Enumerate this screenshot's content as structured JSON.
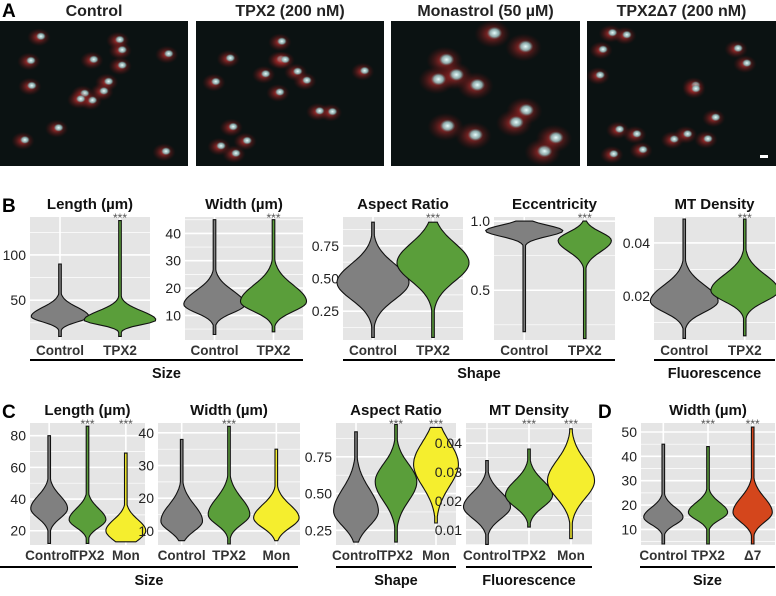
{
  "panel_a": {
    "label": "A",
    "images": [
      {
        "title": "Control"
      },
      {
        "title": "TPX2 (200 nM)"
      },
      {
        "title": "Monastrol (50 µM)"
      },
      {
        "title": "TPX2Δ7 (200 nM)"
      }
    ]
  },
  "colors": {
    "Control": "#808080",
    "TPX2": "#5a9e3a",
    "Mon": "#f5ee2e",
    "Δ7": "#d4461c",
    "panel_bg": "#e5e5e5",
    "grid": "#ffffff"
  },
  "chart_data": [
    {
      "id": "B1",
      "panel_label": "B",
      "type": "violin",
      "title": "Length (µm)",
      "ylim": [
        6,
        142
      ],
      "yticks": [
        50,
        100
      ],
      "group": "Size",
      "significance": [
        "",
        "***"
      ],
      "violins": [
        {
          "category": "Control",
          "min": 10,
          "max": 90,
          "mode": 32,
          "spread_below": 6,
          "spread_above": 10,
          "relative_width": 0.6
        },
        {
          "category": "TPX2",
          "min": 10,
          "max": 138,
          "mode": 28,
          "spread_below": 5,
          "spread_above": 10,
          "relative_width": 0.75
        }
      ]
    },
    {
      "id": "B2",
      "type": "violin",
      "title": "Width (µm)",
      "ylim": [
        1,
        46
      ],
      "yticks": [
        10,
        20,
        30,
        40
      ],
      "group": "Size",
      "significance": [
        "",
        "***"
      ],
      "violins": [
        {
          "category": "Control",
          "min": 3,
          "max": 45,
          "mode": 14,
          "spread_below": 3,
          "spread_above": 5,
          "relative_width": 0.65
        },
        {
          "category": "TPX2",
          "min": 4,
          "max": 45,
          "mode": 15,
          "spread_below": 3.5,
          "spread_above": 6,
          "relative_width": 0.7
        }
      ]
    },
    {
      "id": "B3",
      "type": "violin",
      "title": "Aspect Ratio",
      "ylim": [
        0.03,
        0.97
      ],
      "yticks": [
        0.25,
        0.5,
        0.75
      ],
      "tick_labels": [
        "0.25",
        "0.50",
        "0.75"
      ],
      "group": "Shape",
      "significance": [
        "",
        "***"
      ],
      "violins": [
        {
          "category": "Control",
          "min": 0.05,
          "max": 0.93,
          "mode": 0.47,
          "spread_below": 0.13,
          "spread_above": 0.14,
          "relative_width": 0.75
        },
        {
          "category": "TPX2",
          "min": 0.05,
          "max": 0.93,
          "mode": 0.62,
          "spread_below": 0.14,
          "spread_above": 0.15,
          "relative_width": 0.75
        }
      ]
    },
    {
      "id": "B4",
      "type": "violin",
      "title": "Eccentricity",
      "ylim": [
        0.14,
        1.03
      ],
      "yticks": [
        0.5,
        1.0
      ],
      "tick_labels": [
        "0.5",
        "1.0"
      ],
      "group": "Shape",
      "significance": [
        "",
        "***"
      ],
      "violins": [
        {
          "category": "Control",
          "min": 0.2,
          "max": 1.0,
          "mode": 0.93,
          "spread_below": 0.04,
          "spread_above": 0.04,
          "relative_width": 0.8
        },
        {
          "category": "TPX2",
          "min": 0.15,
          "max": 1.0,
          "mode": 0.86,
          "spread_below": 0.08,
          "spread_above": 0.06,
          "relative_width": 0.55
        }
      ]
    },
    {
      "id": "B5",
      "type": "violin",
      "title": "MT Density",
      "ylim": [
        0.0034,
        0.0498
      ],
      "yticks": [
        0.02,
        0.04
      ],
      "tick_labels": [
        "0.02",
        "0.04"
      ],
      "group": "Fluorescence",
      "significance": [
        "",
        "***"
      ],
      "violins": [
        {
          "category": "Control",
          "min": 0.004,
          "max": 0.049,
          "mode": 0.018,
          "spread_below": 0.004,
          "spread_above": 0.006,
          "relative_width": 0.7
        },
        {
          "category": "TPX2",
          "min": 0.005,
          "max": 0.049,
          "mode": 0.022,
          "spread_below": 0.004,
          "spread_above": 0.006,
          "relative_width": 0.7
        }
      ]
    },
    {
      "id": "C1",
      "panel_label": "C",
      "type": "violin",
      "title": "Length (µm)",
      "ylim": [
        11,
        88
      ],
      "yticks": [
        20,
        40,
        60,
        80
      ],
      "group": "Size",
      "significance": [
        "",
        "***",
        "***"
      ],
      "violins": [
        {
          "category": "Control",
          "min": 12,
          "max": 80,
          "mode": 34,
          "spread_below": 6,
          "spread_above": 8,
          "relative_width": 0.6
        },
        {
          "category": "TPX2",
          "min": 12,
          "max": 86,
          "mode": 27,
          "spread_below": 5,
          "spread_above": 7,
          "relative_width": 0.6
        },
        {
          "category": "Mon",
          "min": 13,
          "max": 69,
          "mode": 20,
          "spread_below": 6,
          "spread_above": 7,
          "relative_width": 0.65
        }
      ]
    },
    {
      "id": "C2",
      "type": "violin",
      "title": "Width (µm)",
      "ylim": [
        5.7,
        43
      ],
      "yticks": [
        10,
        20,
        30,
        40
      ],
      "group": "Size",
      "significance": [
        "",
        "***",
        ""
      ],
      "violins": [
        {
          "category": "Control",
          "min": 7,
          "max": 38,
          "mode": 13,
          "spread_below": 3,
          "spread_above": 5,
          "relative_width": 0.55
        },
        {
          "category": "TPX2",
          "min": 6,
          "max": 42,
          "mode": 15,
          "spread_below": 3,
          "spread_above": 5,
          "relative_width": 0.55
        },
        {
          "category": "Mon",
          "min": 7,
          "max": 35,
          "mode": 14,
          "spread_below": 3,
          "spread_above": 4,
          "relative_width": 0.6
        }
      ]
    },
    {
      "id": "C3",
      "type": "violin",
      "title": "Aspect Ratio",
      "ylim": [
        0.15,
        0.98
      ],
      "yticks": [
        0.25,
        0.5,
        0.75
      ],
      "tick_labels": [
        "0.25",
        "0.50",
        "0.75"
      ],
      "group": "Shape",
      "significance": [
        "",
        "***",
        "***"
      ],
      "violins": [
        {
          "category": "Control",
          "min": 0.17,
          "max": 0.92,
          "mode": 0.38,
          "spread_below": 0.1,
          "spread_above": 0.15,
          "relative_width": 0.7
        },
        {
          "category": "TPX2",
          "min": 0.17,
          "max": 0.97,
          "mode": 0.58,
          "spread_below": 0.13,
          "spread_above": 0.12,
          "relative_width": 0.65
        },
        {
          "category": "Mon",
          "min": 0.3,
          "max": 0.95,
          "mode": 0.7,
          "spread_below": 0.15,
          "spread_above": 0.15,
          "relative_width": 0.7
        }
      ]
    },
    {
      "id": "C4",
      "type": "violin",
      "title": "MT Density",
      "ylim": [
        0.0048,
        0.047
      ],
      "yticks": [
        0.01,
        0.02,
        0.03,
        0.04
      ],
      "tick_labels": [
        "0.01",
        "0.02",
        "0.03",
        "0.04"
      ],
      "group": "Fluorescence",
      "significance": [
        "",
        "***",
        "***"
      ],
      "violins": [
        {
          "category": "Control",
          "min": 0.005,
          "max": 0.034,
          "mode": 0.018,
          "spread_below": 0.004,
          "spread_above": 0.005,
          "relative_width": 0.7
        },
        {
          "category": "TPX2",
          "min": 0.011,
          "max": 0.038,
          "mode": 0.022,
          "spread_below": 0.004,
          "spread_above": 0.005,
          "relative_width": 0.7
        },
        {
          "category": "Mon",
          "min": 0.007,
          "max": 0.045,
          "mode": 0.027,
          "spread_below": 0.006,
          "spread_above": 0.007,
          "relative_width": 0.7
        }
      ]
    },
    {
      "id": "D1",
      "panel_label": "D",
      "type": "violin",
      "title": "Width (µm)",
      "ylim": [
        3.6,
        53.7
      ],
      "yticks": [
        10,
        20,
        30,
        40,
        50
      ],
      "group": "Size",
      "significance": [
        "",
        "***",
        "***"
      ],
      "violins": [
        {
          "category": "Control",
          "min": 4,
          "max": 45,
          "mode": 15,
          "spread_below": 3,
          "spread_above": 4,
          "relative_width": 0.55
        },
        {
          "category": "TPX2",
          "min": 4,
          "max": 44,
          "mode": 17,
          "spread_below": 3,
          "spread_above": 4,
          "relative_width": 0.55
        },
        {
          "category": "Δ7",
          "min": 4,
          "max": 52,
          "mode": 17,
          "spread_below": 4,
          "spread_above": 6,
          "relative_width": 0.55
        }
      ]
    }
  ],
  "group_labels": {
    "B": [
      "Size",
      "Shape",
      "Fluorescence"
    ],
    "C": [
      "Size",
      "Shape",
      "Fluorescence"
    ],
    "D": [
      "Size"
    ]
  }
}
